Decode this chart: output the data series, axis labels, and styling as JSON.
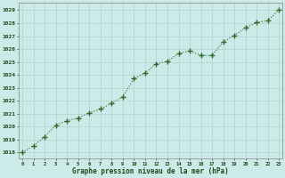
{
  "x": [
    0,
    1,
    2,
    3,
    4,
    5,
    6,
    7,
    8,
    9,
    10,
    11,
    12,
    13,
    14,
    15,
    16,
    17,
    18,
    19,
    20,
    21,
    22,
    23
  ],
  "y": [
    1018.0,
    1018.5,
    1019.2,
    1020.1,
    1020.45,
    1020.65,
    1021.05,
    1021.35,
    1021.8,
    1022.3,
    1023.7,
    1024.15,
    1024.85,
    1025.05,
    1025.65,
    1025.85,
    1025.5,
    1025.5,
    1026.55,
    1027.05,
    1027.65,
    1028.05,
    1028.2,
    1029.05
  ],
  "line_color": "#2d6a2d",
  "marker_color": "#2d6a2d",
  "bg_color": "#cceae7",
  "grid_color": "#b0d4d0",
  "xlabel": "Graphe pression niveau de la mer (hPa)",
  "xlabel_color": "#1a4a1a",
  "ylabel_ticks": [
    1018,
    1019,
    1020,
    1021,
    1022,
    1023,
    1024,
    1025,
    1026,
    1027,
    1028,
    1029
  ],
  "xticks": [
    0,
    1,
    2,
    3,
    4,
    5,
    6,
    7,
    8,
    9,
    10,
    11,
    12,
    13,
    14,
    15,
    16,
    17,
    18,
    19,
    20,
    21,
    22,
    23
  ],
  "xtick_labels": [
    "0",
    "1",
    "2",
    "3",
    "4",
    "5",
    "6",
    "7",
    "8",
    "9",
    "10",
    "11",
    "12",
    "13",
    "14",
    "15",
    "16",
    "17",
    "18",
    "19",
    "20",
    "21",
    "22",
    "23"
  ],
  "ylim": [
    1017.5,
    1029.6
  ],
  "xlim": [
    -0.3,
    23.3
  ]
}
